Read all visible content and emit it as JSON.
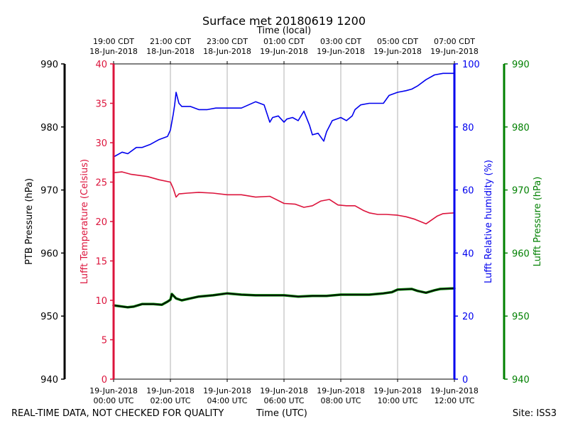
{
  "title": "Surface met 20180619 1200",
  "top_axis_label": "Time (local)",
  "bottom_axis_label": "Time (UTC)",
  "footer_note": "REAL-TIME DATA, NOT CHECKED FOR QUALITY",
  "site_label": "Site: ISS3",
  "colors": {
    "temperature": "#dc143c",
    "humidity": "#0000ee",
    "ptb_pressure": "#000000",
    "lufft_pressure": "#008000",
    "grid": "#b0b0b0"
  },
  "chart_data": {
    "type": "line",
    "x_range_hours": [
      0,
      12
    ],
    "bottom_ticks": [
      {
        "line1": "19-Jun-2018",
        "line2": "00:00 UTC"
      },
      {
        "line1": "19-Jun-2018",
        "line2": "02:00 UTC"
      },
      {
        "line1": "19-Jun-2018",
        "line2": "04:00 UTC"
      },
      {
        "line1": "19-Jun-2018",
        "line2": "06:00 UTC"
      },
      {
        "line1": "19-Jun-2018",
        "line2": "08:00 UTC"
      },
      {
        "line1": "19-Jun-2018",
        "line2": "10:00 UTC"
      },
      {
        "line1": "19-Jun-2018",
        "line2": "12:00 UTC"
      }
    ],
    "top_ticks": [
      {
        "line1": "19:00 CDT",
        "line2": "18-Jun-2018"
      },
      {
        "line1": "21:00 CDT",
        "line2": "18-Jun-2018"
      },
      {
        "line1": "23:00 CDT",
        "line2": "18-Jun-2018"
      },
      {
        "line1": "01:00 CDT",
        "line2": "19-Jun-2018"
      },
      {
        "line1": "03:00 CDT",
        "line2": "19-Jun-2018"
      },
      {
        "line1": "05:00 CDT",
        "line2": "19-Jun-2018"
      },
      {
        "line1": "07:00 CDT",
        "line2": "19-Jun-2018"
      }
    ],
    "axes": {
      "ptb_pressure": {
        "label": "PTB Pressure (hPa)",
        "range": [
          940,
          990
        ],
        "ticks": [
          940,
          950,
          960,
          970,
          980,
          990
        ]
      },
      "temperature": {
        "label": "Lufft Temperature (Celsius)",
        "range": [
          0,
          40
        ],
        "ticks": [
          0,
          5,
          10,
          15,
          20,
          25,
          30,
          35,
          40
        ]
      },
      "humidity": {
        "label": "Lufft Relative humidity (%)",
        "range": [
          0,
          100
        ],
        "ticks": [
          0,
          20,
          40,
          60,
          80,
          100
        ]
      },
      "lufft_pressure": {
        "label": "Lufft Pressure (hPa)",
        "range": [
          940,
          990
        ],
        "ticks": [
          940,
          950,
          960,
          970,
          980,
          990
        ]
      }
    },
    "series": [
      {
        "name": "Lufft Relative humidity",
        "axis": "humidity",
        "color": "#0000ee",
        "x": [
          0,
          0.3,
          0.5,
          0.8,
          1.0,
          1.3,
          1.6,
          1.9,
          2.0,
          2.1,
          2.15,
          2.2,
          2.3,
          2.4,
          2.7,
          3.0,
          3.3,
          3.6,
          4.0,
          4.5,
          5.0,
          5.3,
          5.5,
          5.6,
          5.8,
          6.0,
          6.1,
          6.3,
          6.5,
          6.7,
          6.9,
          7.0,
          7.2,
          7.4,
          7.5,
          7.7,
          8.0,
          8.2,
          8.4,
          8.5,
          8.7,
          9.0,
          9.3,
          9.5,
          9.7,
          10.0,
          10.3,
          10.5,
          10.7,
          11.0,
          11.3,
          11.6,
          12.0
        ],
        "values": [
          70.5,
          72,
          71.5,
          73.5,
          73.5,
          74.5,
          76,
          77,
          79,
          84,
          87,
          91,
          87.5,
          86.5,
          86.5,
          85.5,
          85.5,
          86,
          86,
          86,
          88,
          87,
          81.5,
          83,
          83.5,
          81.5,
          82.5,
          83,
          82,
          85,
          80.5,
          77.5,
          78,
          75.5,
          78.5,
          82,
          83,
          82,
          83.5,
          85.5,
          87,
          87.5,
          87.5,
          87.5,
          90,
          91,
          91.5,
          92,
          93,
          95,
          96.5,
          97,
          97
        ]
      },
      {
        "name": "Lufft Temperature",
        "axis": "temperature",
        "color": "#dc143c",
        "x": [
          0,
          0.3,
          0.6,
          1.0,
          1.2,
          1.6,
          2.0,
          2.1,
          2.2,
          2.3,
          2.6,
          3.0,
          3.5,
          4.0,
          4.5,
          5.0,
          5.5,
          6.0,
          6.4,
          6.7,
          7.0,
          7.3,
          7.6,
          7.9,
          8.2,
          8.5,
          8.8,
          9.0,
          9.3,
          9.6,
          10.0,
          10.3,
          10.6,
          11.0,
          11.4,
          11.6,
          12.0
        ],
        "values": [
          26.2,
          26.3,
          26.0,
          25.8,
          25.7,
          25.3,
          25.0,
          24.2,
          23.1,
          23.5,
          23.6,
          23.7,
          23.6,
          23.4,
          23.4,
          23.1,
          23.2,
          22.3,
          22.2,
          21.8,
          22.0,
          22.6,
          22.8,
          22.1,
          22.0,
          22.0,
          21.4,
          21.1,
          20.9,
          20.9,
          20.8,
          20.6,
          20.3,
          19.7,
          20.7,
          21.0,
          21.1
        ]
      },
      {
        "name": "Lufft Pressure",
        "axis": "lufft_pressure",
        "color": "#008000",
        "x": [
          0,
          0.5,
          0.7,
          1.0,
          1.4,
          1.7,
          1.9,
          2.0,
          2.05,
          2.2,
          2.4,
          2.7,
          3.0,
          3.5,
          4.0,
          4.5,
          5.0,
          5.5,
          6.0,
          6.5,
          7.0,
          7.5,
          8.0,
          8.5,
          9.0,
          9.5,
          9.8,
          10.0,
          10.5,
          10.7,
          11.0,
          11.3,
          11.5,
          12.0
        ],
        "values": [
          951.7,
          951.4,
          951.5,
          951.9,
          951.9,
          951.8,
          952.3,
          952.6,
          953.5,
          952.8,
          952.5,
          952.8,
          953.1,
          953.3,
          953.6,
          953.4,
          953.3,
          953.3,
          953.3,
          953.1,
          953.2,
          953.2,
          953.4,
          953.4,
          953.4,
          953.6,
          953.8,
          954.2,
          954.3,
          954.0,
          953.7,
          954.1,
          954.3,
          954.4
        ]
      },
      {
        "name": "PTB Pressure",
        "axis": "ptb_pressure",
        "color": "#000000",
        "x": [
          0,
          0.5,
          0.7,
          1.0,
          1.4,
          1.7,
          1.9,
          2.0,
          2.05,
          2.2,
          2.4,
          2.7,
          3.0,
          3.5,
          4.0,
          4.5,
          5.0,
          5.5,
          6.0,
          6.5,
          7.0,
          7.5,
          8.0,
          8.5,
          9.0,
          9.5,
          9.8,
          10.0,
          10.5,
          10.7,
          11.0,
          11.3,
          11.5,
          12.0
        ],
        "values": [
          951.7,
          951.4,
          951.5,
          951.9,
          951.9,
          951.8,
          952.3,
          952.6,
          953.5,
          952.8,
          952.5,
          952.8,
          953.1,
          953.3,
          953.6,
          953.4,
          953.3,
          953.3,
          953.3,
          953.1,
          953.2,
          953.2,
          953.4,
          953.4,
          953.4,
          953.6,
          953.8,
          954.2,
          954.3,
          954.0,
          953.7,
          954.1,
          954.3,
          954.4
        ]
      }
    ]
  }
}
